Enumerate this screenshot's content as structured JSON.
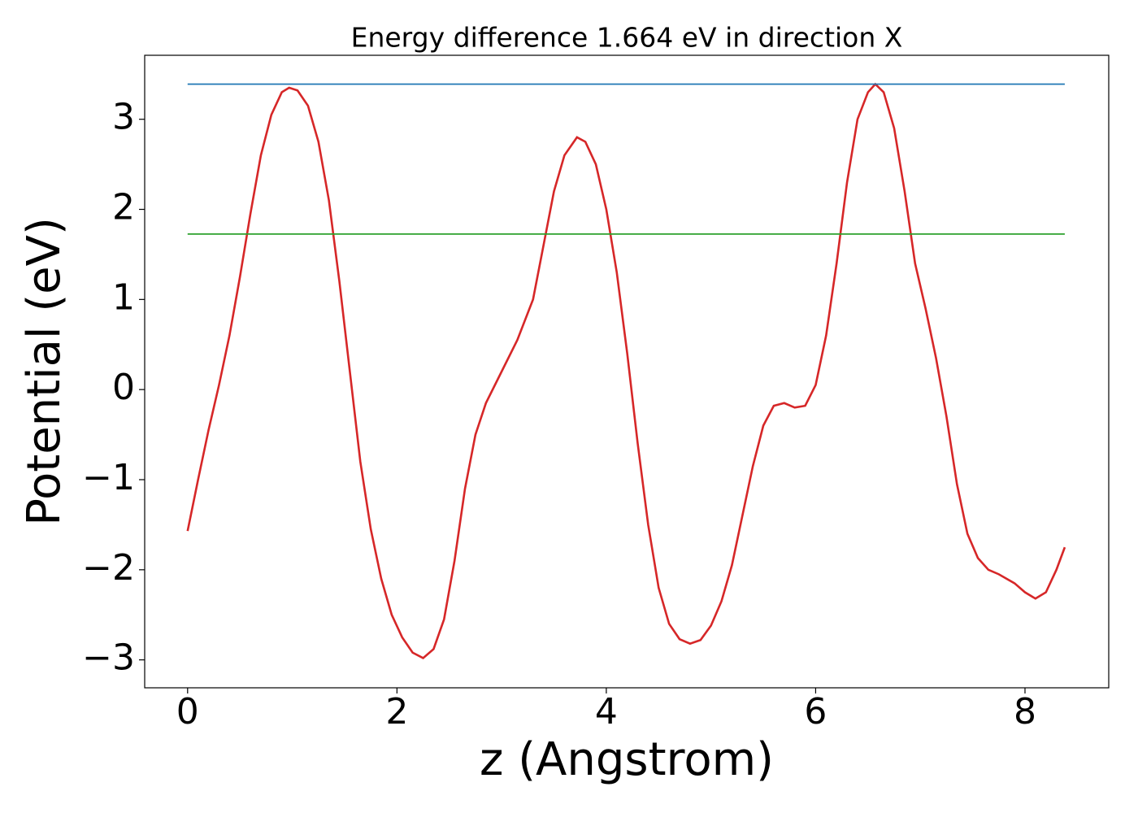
{
  "chart_data": {
    "type": "line",
    "title": "Energy difference 1.664 eV in direction X",
    "xlabel": "z (Angstrom)",
    "ylabel": "Potential (eV)",
    "xlim": [
      -0.41,
      8.8
    ],
    "ylim": [
      -3.31,
      3.71
    ],
    "xticks": [
      0,
      2,
      4,
      6,
      8
    ],
    "yticks": [
      {
        "value": -3,
        "label": "−3"
      },
      {
        "value": -2,
        "label": "−2"
      },
      {
        "value": -1,
        "label": "−1"
      },
      0,
      1,
      2,
      3
    ],
    "series": [
      {
        "color": "#d62728",
        "x": [
          0,
          0.1,
          0.2,
          0.3,
          0.4,
          0.5,
          0.6,
          0.7,
          0.8,
          0.9,
          0.97,
          1.05,
          1.15,
          1.25,
          1.35,
          1.45,
          1.55,
          1.65,
          1.75,
          1.85,
          1.95,
          2.05,
          2.15,
          2.25,
          2.35,
          2.45,
          2.55,
          2.65,
          2.75,
          2.85,
          3.0,
          3.15,
          3.3,
          3.4,
          3.5,
          3.6,
          3.72,
          3.8,
          3.9,
          4.0,
          4.1,
          4.2,
          4.3,
          4.4,
          4.5,
          4.6,
          4.7,
          4.8,
          4.9,
          5.0,
          5.1,
          5.2,
          5.3,
          5.4,
          5.5,
          5.6,
          5.7,
          5.8,
          5.9,
          6.0,
          6.1,
          6.2,
          6.3,
          6.4,
          6.5,
          6.57,
          6.65,
          6.75,
          6.85,
          6.95,
          7.05,
          7.15,
          7.25,
          7.35,
          7.45,
          7.55,
          7.65,
          7.75,
          7.9,
          8.0,
          8.1,
          8.2,
          8.3,
          8.38
        ],
        "values": [
          -1.57,
          -1.0,
          -0.45,
          0.05,
          0.6,
          1.25,
          1.95,
          2.6,
          3.05,
          3.3,
          3.35,
          3.32,
          3.15,
          2.75,
          2.1,
          1.2,
          0.2,
          -0.8,
          -1.55,
          -2.1,
          -2.5,
          -2.75,
          -2.92,
          -2.98,
          -2.88,
          -2.55,
          -1.9,
          -1.1,
          -0.5,
          -0.15,
          0.2,
          0.55,
          1.0,
          1.6,
          2.2,
          2.6,
          2.8,
          2.75,
          2.5,
          2.0,
          1.3,
          0.4,
          -0.6,
          -1.5,
          -2.2,
          -2.6,
          -2.77,
          -2.82,
          -2.78,
          -2.62,
          -2.35,
          -1.95,
          -1.4,
          -0.85,
          -0.4,
          -0.18,
          -0.15,
          -0.2,
          -0.18,
          0.05,
          0.6,
          1.4,
          2.3,
          3.0,
          3.3,
          3.39,
          3.3,
          2.9,
          2.2,
          1.4,
          0.9,
          0.35,
          -0.3,
          -1.05,
          -1.6,
          -1.87,
          -2.0,
          -2.05,
          -2.15,
          -2.25,
          -2.32,
          -2.25,
          -2.0,
          -1.75
        ]
      },
      {
        "color": "#1f77b4",
        "x": [
          0,
          8.38
        ],
        "values": [
          3.39,
          3.39
        ]
      },
      {
        "color": "#2ca02c",
        "x": [
          0,
          8.38
        ],
        "values": [
          1.726,
          1.726
        ]
      }
    ]
  }
}
